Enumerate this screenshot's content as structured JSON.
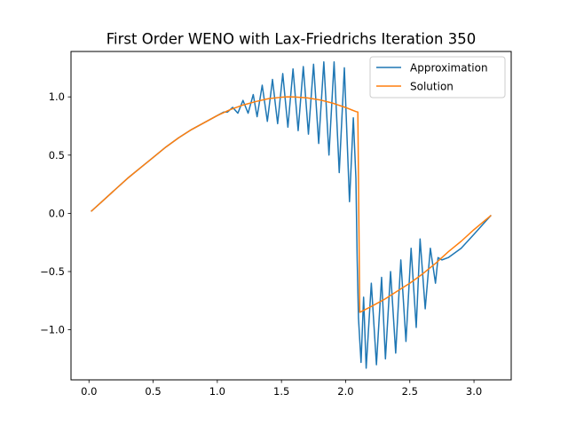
{
  "chart_data": {
    "type": "line",
    "title": "First Order WENO with Lax-Friedrichs Iteration 350",
    "xlabel": "",
    "ylabel": "",
    "xlim": [
      -0.14,
      3.29
    ],
    "ylim": [
      -1.43,
      1.39
    ],
    "xticks": [
      0.0,
      0.5,
      1.0,
      1.5,
      2.0,
      2.5,
      3.0
    ],
    "xtick_labels": [
      "0.0",
      "0.5",
      "1.0",
      "1.5",
      "2.0",
      "2.5",
      "3.0"
    ],
    "yticks": [
      -1.0,
      -0.5,
      0.0,
      0.5,
      1.0
    ],
    "ytick_labels": [
      "−1.0",
      "−0.5",
      "0.0",
      "0.5",
      "1.0"
    ],
    "grid": false,
    "legend_position": "upper-right",
    "series": [
      {
        "name": "Approximation",
        "color": "#1f77b4",
        "x": [
          0.02,
          0.1,
          0.2,
          0.3,
          0.4,
          0.5,
          0.6,
          0.7,
          0.8,
          0.9,
          1.0,
          1.05,
          1.08,
          1.12,
          1.16,
          1.2,
          1.24,
          1.28,
          1.31,
          1.35,
          1.39,
          1.43,
          1.47,
          1.51,
          1.55,
          1.59,
          1.63,
          1.67,
          1.71,
          1.75,
          1.79,
          1.83,
          1.87,
          1.91,
          1.95,
          1.99,
          2.03,
          2.06,
          2.08,
          2.09,
          2.1,
          2.12,
          2.14,
          2.16,
          2.2,
          2.24,
          2.28,
          2.31,
          2.35,
          2.39,
          2.43,
          2.47,
          2.51,
          2.55,
          2.58,
          2.62,
          2.66,
          2.7,
          2.72,
          2.75,
          2.8,
          2.9,
          3.0,
          3.13
        ],
        "y": [
          0.02,
          0.1,
          0.2,
          0.3,
          0.39,
          0.48,
          0.57,
          0.65,
          0.72,
          0.78,
          0.84,
          0.87,
          0.87,
          0.91,
          0.86,
          0.97,
          0.86,
          1.02,
          0.83,
          1.1,
          0.79,
          1.15,
          0.77,
          1.2,
          0.74,
          1.24,
          0.71,
          1.26,
          0.68,
          1.28,
          0.6,
          1.3,
          0.5,
          1.3,
          0.35,
          1.25,
          0.1,
          0.82,
          0.3,
          -0.4,
          -0.9,
          -1.28,
          -0.72,
          -1.33,
          -0.6,
          -1.3,
          -0.55,
          -1.25,
          -0.5,
          -1.2,
          -0.4,
          -1.1,
          -0.3,
          -0.98,
          -0.22,
          -0.82,
          -0.3,
          -0.6,
          -0.38,
          -0.4,
          -0.38,
          -0.3,
          -0.18,
          -0.02
        ]
      },
      {
        "name": "Solution",
        "color": "#ff7f0e",
        "x": [
          0.02,
          0.1,
          0.2,
          0.3,
          0.4,
          0.5,
          0.6,
          0.7,
          0.8,
          0.9,
          1.0,
          1.1,
          1.2,
          1.3,
          1.4,
          1.5,
          1.55,
          1.6,
          1.7,
          1.8,
          1.9,
          2.0,
          2.05,
          2.08,
          2.095,
          2.11,
          2.2,
          2.3,
          2.4,
          2.5,
          2.6,
          2.7,
          2.8,
          2.9,
          3.0,
          3.13
        ],
        "y": [
          0.02,
          0.1,
          0.2,
          0.3,
          0.39,
          0.48,
          0.57,
          0.65,
          0.72,
          0.78,
          0.84,
          0.89,
          0.93,
          0.96,
          0.985,
          0.997,
          1.0,
          0.999,
          0.992,
          0.974,
          0.946,
          0.909,
          0.887,
          0.874,
          0.87,
          -0.85,
          -0.8,
          -0.74,
          -0.67,
          -0.6,
          -0.52,
          -0.43,
          -0.33,
          -0.24,
          -0.14,
          -0.02
        ]
      }
    ]
  }
}
